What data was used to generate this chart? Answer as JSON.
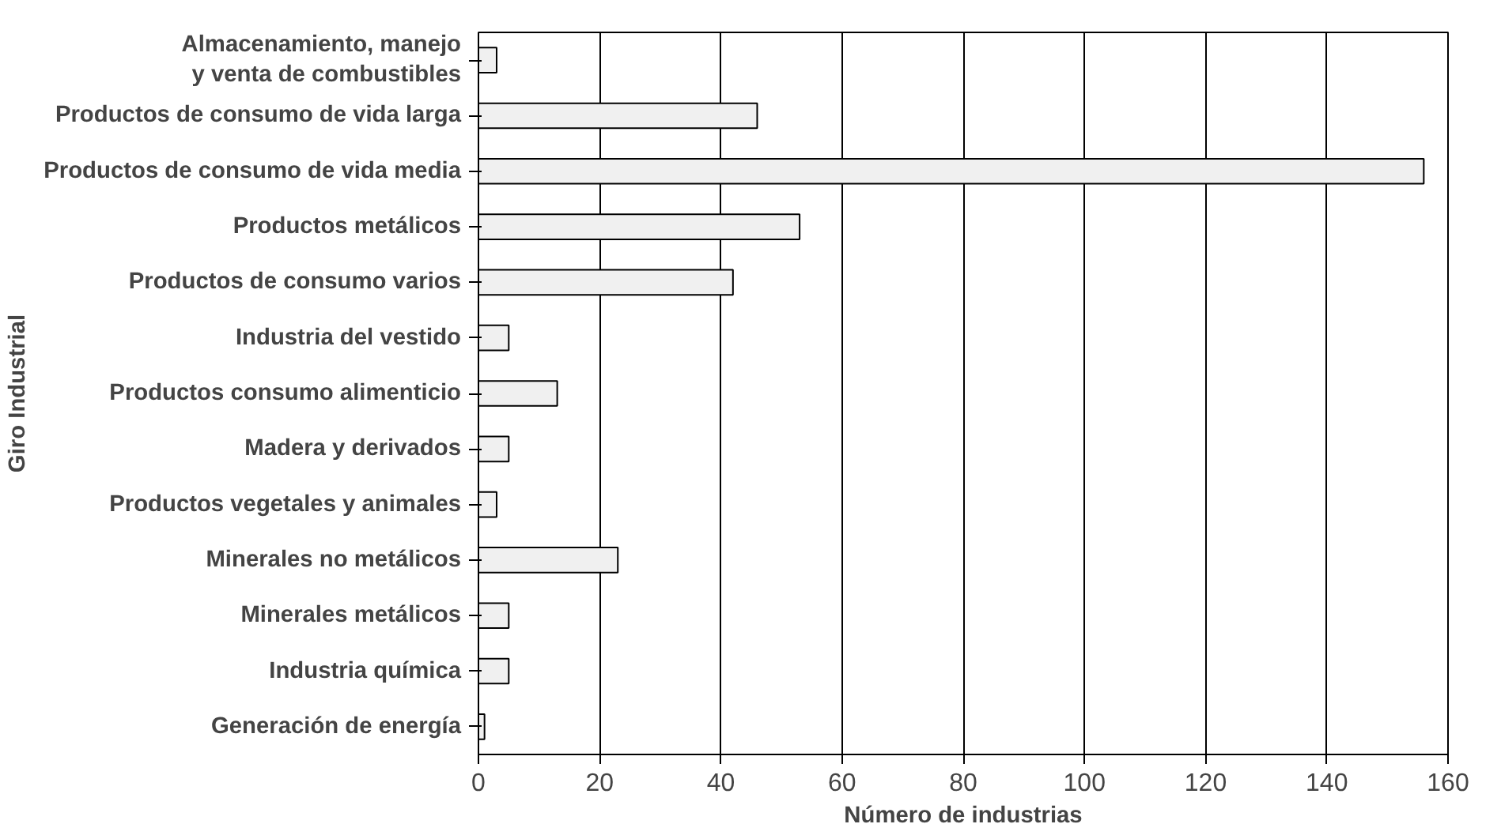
{
  "chart_data": {
    "type": "bar",
    "orientation": "horizontal",
    "xlabel": "Número de industrias",
    "ylabel": "Giro Industrial",
    "categories": [
      "Almacenamiento, manejo\ny venta de combustibles",
      "Productos de consumo de vida larga",
      "Productos de consumo de vida media",
      "Productos metálicos",
      "Productos de consumo varios",
      "Industria del vestido",
      "Productos consumo alimenticio",
      "Madera y derivados",
      "Productos vegetales y animales",
      "Minerales no metálicos",
      "Minerales metálicos",
      "Industria química",
      "Generación de energía"
    ],
    "values": [
      3,
      46,
      156,
      53,
      42,
      5,
      13,
      5,
      3,
      23,
      5,
      5,
      1
    ],
    "color": "#f0f0f0",
    "xlim": [
      0,
      160
    ],
    "xticks": [
      0,
      20,
      40,
      60,
      80,
      100,
      120,
      140,
      160
    ],
    "grid": "x"
  }
}
